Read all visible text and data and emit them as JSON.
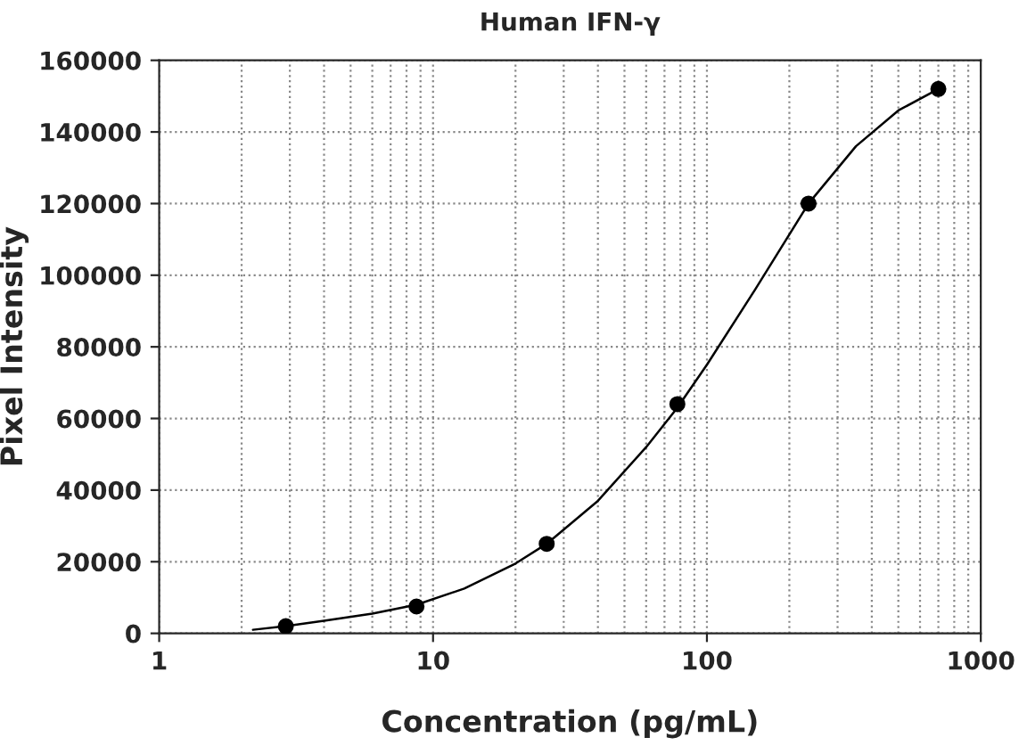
{
  "chart_data": {
    "type": "scatter",
    "title": "Human IFN-γ",
    "xlabel": "Concentration (pg/mL)",
    "ylabel": "Pixel Intensity",
    "log": "x",
    "grid": true,
    "legend": false,
    "marker": "circle",
    "xlim": [
      1,
      1000
    ],
    "xticks": [
      1,
      10,
      100,
      1000
    ],
    "ylim": [
      0,
      160000
    ],
    "yticks": [
      0,
      20000,
      40000,
      60000,
      80000,
      100000,
      120000,
      140000,
      160000
    ],
    "series": [
      {
        "color": "#000000",
        "x": [
          2.9,
          8.7,
          26,
          78,
          235,
          700
        ],
        "values": [
          2000,
          7500,
          25000,
          64000,
          120000,
          152000
        ]
      },
      {
        "type": "line",
        "color": "#000000",
        "marker": "none",
        "line_style": "solid",
        "x": [
          2.2,
          2.9,
          4,
          6,
          8.7,
          13,
          20,
          26,
          40,
          60,
          78,
          100,
          150,
          235,
          350,
          500,
          700
        ],
        "values": [
          1000,
          2000,
          3500,
          5500,
          8000,
          12500,
          19500,
          25000,
          37000,
          52000,
          63000,
          75000,
          96000,
          120000,
          136000,
          146000,
          152000
        ]
      }
    ]
  }
}
